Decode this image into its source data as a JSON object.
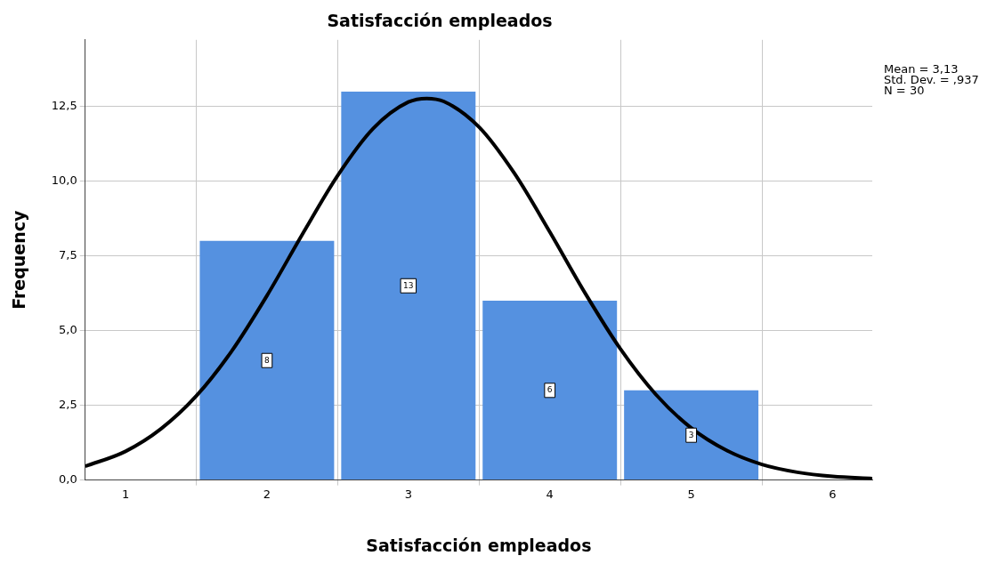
{
  "chart_data": {
    "type": "histogram",
    "title": "Satisfacción empleados",
    "xlabel": "Satisfacción empleados",
    "ylabel": "Frequency",
    "bins": [
      1.5,
      2.5,
      3.5,
      4.5,
      5.5
    ],
    "values": [
      8,
      13,
      6,
      3
    ],
    "color": "#5591e0",
    "value_labels": [
      "8",
      "13",
      "6",
      "3"
    ],
    "series": [
      {
        "type": "line",
        "color": "#000000",
        "x": [
          0.715,
          1,
          1.25,
          1.5,
          1.75,
          2,
          2.25,
          2.5,
          2.75,
          3,
          3.13,
          3.25,
          3.5,
          3.75,
          4,
          4.25,
          4.5,
          4.75,
          5,
          5.25,
          5.5,
          5.75,
          6,
          6.28
        ],
        "values": [
          0.46,
          0.96,
          1.71,
          2.81,
          4.31,
          6.17,
          8.22,
          10.19,
          11.76,
          12.65,
          12.77,
          12.67,
          11.81,
          10.26,
          8.3,
          6.25,
          4.38,
          2.86,
          1.74,
          0.99,
          0.52,
          0.26,
          0.12,
          0.05
        ]
      }
    ],
    "marker": "none",
    "line_style": "solid",
    "xlim": [
      0.715,
      6.28
    ],
    "xticks": [
      1,
      2,
      3,
      4,
      5,
      6
    ],
    "ylim": [
      0,
      14.73
    ],
    "yticks": [
      {
        "value": 0,
        "label": "0,0"
      },
      {
        "value": 2.5,
        "label": "2,5"
      },
      {
        "value": 5,
        "label": "5,0"
      },
      {
        "value": 7.5,
        "label": "7,5"
      },
      {
        "value": 10,
        "label": "10,0"
      },
      {
        "value": 12.5,
        "label": "12,5"
      }
    ],
    "grid": true,
    "legend": false,
    "annotations": [
      "Mean = 3,13",
      "Std. Dev. = ,937",
      "N = 30"
    ]
  }
}
